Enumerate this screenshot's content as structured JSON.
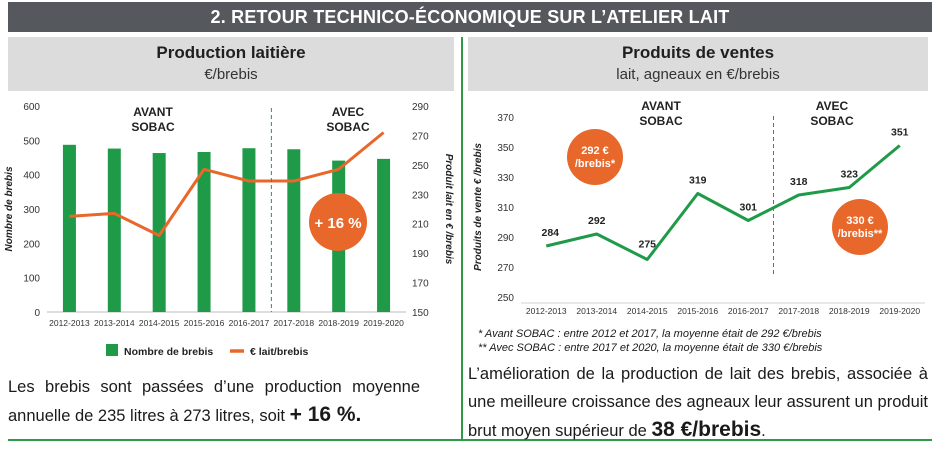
{
  "banner": "2. RETOUR TECHNICO-ÉCONOMIQUE SUR L’ATELIER LAIT",
  "left_panel": {
    "title": "Production laitière",
    "subtitle": "€/brebis",
    "text_before": "Les brebis sont passées d’une production moyenne annuelle de 235 litres à 273 litres, soit ",
    "text_bold": "+ 16 %."
  },
  "right_panel": {
    "title": "Produits de ventes",
    "subtitle": "lait, agneaux en €/brebis",
    "note1": "*  Avant SOBAC : entre 2012 et 2017, la moyenne était de 292 €/brebis",
    "note2": "** Avec SOBAC : entre 2017 et 2020, la moyenne était de 330 €/brebis",
    "text_before": "L’amélioration de la production de lait des brebis, associée à une meilleure croissance des agneaux leur assurent un produit brut moyen supérieur de ",
    "text_bold": "38 €/brebis",
    "text_after": "."
  },
  "colors": {
    "green": "#1f9a48",
    "orange": "#e8672a",
    "divider": "#2e9a48",
    "banner": "#55585c",
    "header_bg": "#dcdcdc"
  },
  "chart_data": [
    {
      "type": "bar",
      "categories": [
        "2012-2013",
        "2013-2014",
        "2014-2015",
        "2015-2016",
        "2016-2017",
        "2017-2018",
        "2018-2019",
        "2019-2020"
      ],
      "series": [
        {
          "name": "Nombre de brebis",
          "type": "bar",
          "axis": "left",
          "values": [
            487,
            476,
            463,
            466,
            477,
            474,
            441,
            446
          ]
        },
        {
          "name": "€ lait/brebis",
          "type": "line",
          "axis": "right",
          "values": [
            215,
            217,
            202,
            247,
            239,
            239,
            247,
            272
          ]
        }
      ],
      "ylabel": "Nombre de brebis",
      "y2label": "Produit lait en € /brebis",
      "ylim": [
        0,
        600
      ],
      "y_ticks": [
        0,
        100,
        200,
        300,
        400,
        500,
        600
      ],
      "y2lim": [
        150,
        290
      ],
      "y2_ticks": [
        150,
        170,
        190,
        210,
        230,
        250,
        270,
        290
      ],
      "annotations": {
        "before": "AVANT\nSOBAC",
        "after": "AVEC\nSOBAC",
        "badge": "+ 16 %"
      },
      "legend_position": "bottom",
      "grid": false
    },
    {
      "type": "line",
      "categories": [
        "2012-2013",
        "2013-2014",
        "2014-2015",
        "2015-2016",
        "2016-2017",
        "2017-2018",
        "2018-2019",
        "2019-2020"
      ],
      "series": [
        {
          "values": [
            284,
            292,
            275,
            319,
            301,
            318,
            323,
            351
          ]
        }
      ],
      "ylabel": "Produits de vente € /brebis",
      "ylim": [
        250,
        370
      ],
      "y_ticks": [
        250,
        270,
        290,
        310,
        330,
        350,
        370
      ],
      "annotations": {
        "before": "AVANT\nSOBAC",
        "after": "AVEC\nSOBAC",
        "badge_before": "292 €\n/brebis*",
        "badge_after": "330 €\n/brebis**"
      },
      "grid": false
    }
  ]
}
